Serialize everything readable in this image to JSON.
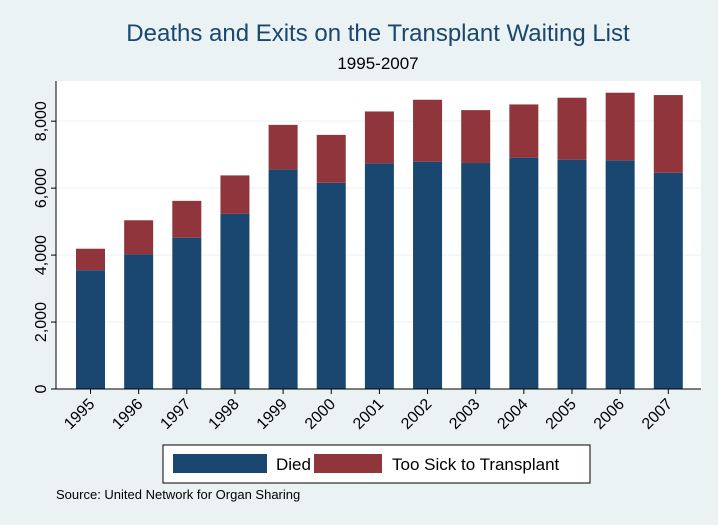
{
  "chart_data": {
    "type": "bar",
    "stacked": true,
    "title": "Deaths and Exits on the Transplant Waiting List",
    "subtitle": "1995-2007",
    "xlabel": "",
    "ylabel": "",
    "ylim": [
      0,
      9200
    ],
    "yticks": [
      0,
      2000,
      4000,
      6000,
      8000
    ],
    "ytick_labels": [
      "0",
      "2,000",
      "4,000",
      "6,000",
      "8,000"
    ],
    "grid": true,
    "categories": [
      "1995",
      "1996",
      "1997",
      "1998",
      "1999",
      "2000",
      "2001",
      "2002",
      "2003",
      "2004",
      "2005",
      "2006",
      "2007"
    ],
    "series": [
      {
        "name": "Died",
        "color": "#1a476f",
        "values": [
          3550,
          4020,
          4520,
          5230,
          6560,
          6160,
          6740,
          6790,
          6750,
          6910,
          6850,
          6830,
          6460
        ]
      },
      {
        "name": "Too Sick to Transplant",
        "color": "#90353b",
        "values": [
          640,
          1020,
          1100,
          1150,
          1330,
          1430,
          1550,
          1850,
          1580,
          1590,
          1850,
          2020,
          2320
        ]
      }
    ],
    "legend": {
      "placement": "bottom",
      "items": [
        "Died",
        "Too Sick to Transplant"
      ]
    },
    "note": "Source: United Network for Organ Sharing",
    "colors": {
      "background": "#eaf2f3",
      "plot_background": "#ffffff",
      "title": "#1a476f",
      "grid": "#eaf2f3"
    }
  }
}
